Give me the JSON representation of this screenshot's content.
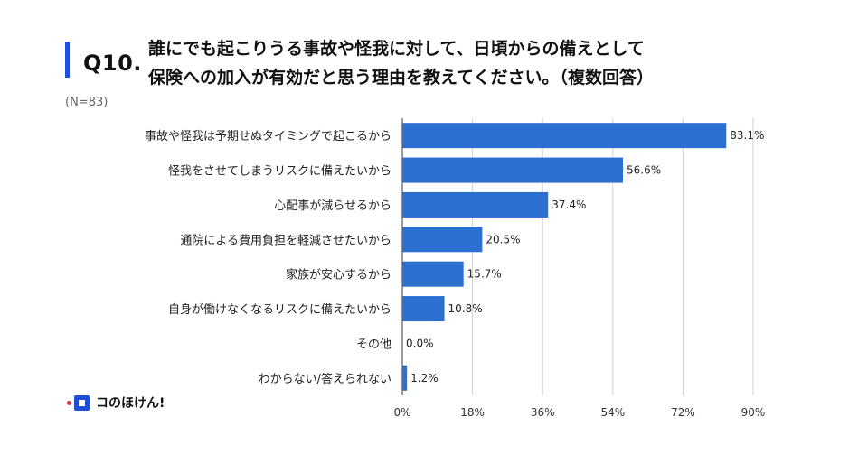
{
  "header": {
    "question_number": "Q10.",
    "question_text": "誰にでも起こりうる事故や怪我に対して、日頃からの備えとして\n保険への加入が有効だと思う理由を教えてください。（複数回答）",
    "sample_size": "(N=83)"
  },
  "brand": {
    "name": "コのほけん!",
    "accent_color": "#1f4fd6",
    "dot_color": "#e8323c"
  },
  "chart_data": {
    "type": "bar",
    "orientation": "horizontal",
    "categories": [
      "事故や怪我は予期せぬタイミングで起こるから",
      "怪我をさせてしまうリスクに備えたいから",
      "心配事が減らせるから",
      "通院による費用負担を軽減させたいから",
      "家族が安心するから",
      "自身が働けなくなるリスクに備えたいから",
      "その他",
      "わからない/答えられない"
    ],
    "values": [
      83.1,
      56.6,
      37.4,
      20.5,
      15.7,
      10.8,
      0.0,
      1.2
    ],
    "value_labels": [
      "83.1%",
      "56.6%",
      "37.4%",
      "20.5%",
      "15.7%",
      "10.8%",
      "0.0%",
      "1.2%"
    ],
    "xlim": [
      0,
      90
    ],
    "xticks": [
      0,
      18,
      36,
      54,
      72,
      90
    ],
    "xtick_labels": [
      "0%",
      "18%",
      "36%",
      "54%",
      "72%",
      "90%"
    ],
    "grid": true,
    "bar_color": "#2b6fd1",
    "grid_color": "#cfcfcf"
  }
}
